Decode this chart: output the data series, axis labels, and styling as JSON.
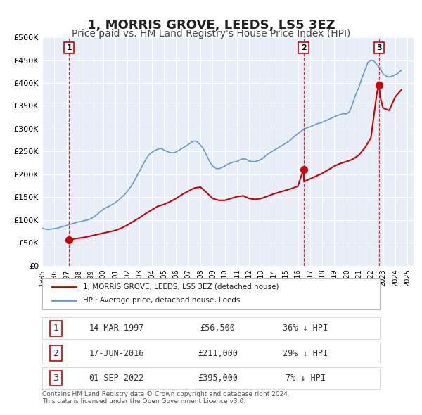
{
  "title": "1, MORRIS GROVE, LEEDS, LS5 3EZ",
  "subtitle": "Price paid vs. HM Land Registry's House Price Index (HPI)",
  "title_fontsize": 13,
  "subtitle_fontsize": 10,
  "background_color": "#ffffff",
  "plot_bg_color": "#e8eef8",
  "grid_color": "#ffffff",
  "red_line_color": "#cc0000",
  "blue_line_color": "#6699cc",
  "sale_marker_color": "#cc0000",
  "vline_color": "#cc0000",
  "ylabel_ticks": [
    "£0",
    "£50K",
    "£100K",
    "£150K",
    "£200K",
    "£250K",
    "£300K",
    "£350K",
    "£400K",
    "£450K",
    "£500K"
  ],
  "ytick_values": [
    0,
    50000,
    100000,
    150000,
    200000,
    250000,
    300000,
    350000,
    400000,
    450000,
    500000
  ],
  "xmin": 1995.0,
  "xmax": 2025.5,
  "ymin": 0,
  "ymax": 500000,
  "sales": [
    {
      "num": 1,
      "date": "14-MAR-1997",
      "price": 56500,
      "year": 1997.2,
      "pct": "36%",
      "dir": "↓"
    },
    {
      "num": 2,
      "date": "17-JUN-2016",
      "price": 211000,
      "year": 2016.46,
      "pct": "29%",
      "dir": "↓"
    },
    {
      "num": 3,
      "date": "01-SEP-2022",
      "price": 395000,
      "year": 2022.67,
      "pct": "7%",
      "dir": "↓"
    }
  ],
  "legend_entries": [
    "1, MORRIS GROVE, LEEDS, LS5 3EZ (detached house)",
    "HPI: Average price, detached house, Leeds"
  ],
  "footer_line1": "Contains HM Land Registry data © Crown copyright and database right 2024.",
  "footer_line2": "This data is licensed under the Open Government Licence v3.0.",
  "hpi_data": {
    "years": [
      1995.0,
      1995.25,
      1995.5,
      1995.75,
      1996.0,
      1996.25,
      1996.5,
      1996.75,
      1997.0,
      1997.25,
      1997.5,
      1997.75,
      1998.0,
      1998.25,
      1998.5,
      1998.75,
      1999.0,
      1999.25,
      1999.5,
      1999.75,
      2000.0,
      2000.25,
      2000.5,
      2000.75,
      2001.0,
      2001.25,
      2001.5,
      2001.75,
      2002.0,
      2002.25,
      2002.5,
      2002.75,
      2003.0,
      2003.25,
      2003.5,
      2003.75,
      2004.0,
      2004.25,
      2004.5,
      2004.75,
      2005.0,
      2005.25,
      2005.5,
      2005.75,
      2006.0,
      2006.25,
      2006.5,
      2006.75,
      2007.0,
      2007.25,
      2007.5,
      2007.75,
      2008.0,
      2008.25,
      2008.5,
      2008.75,
      2009.0,
      2009.25,
      2009.5,
      2009.75,
      2010.0,
      2010.25,
      2010.5,
      2010.75,
      2011.0,
      2011.25,
      2011.5,
      2011.75,
      2012.0,
      2012.25,
      2012.5,
      2012.75,
      2013.0,
      2013.25,
      2013.5,
      2013.75,
      2014.0,
      2014.25,
      2014.5,
      2014.75,
      2015.0,
      2015.25,
      2015.5,
      2015.75,
      2016.0,
      2016.25,
      2016.5,
      2016.75,
      2017.0,
      2017.25,
      2017.5,
      2017.75,
      2018.0,
      2018.25,
      2018.5,
      2018.75,
      2019.0,
      2019.25,
      2019.5,
      2019.75,
      2020.0,
      2020.25,
      2020.5,
      2020.75,
      2021.0,
      2021.25,
      2021.5,
      2021.75,
      2022.0,
      2022.25,
      2022.5,
      2022.75,
      2023.0,
      2023.25,
      2023.5,
      2023.75,
      2024.0,
      2024.25,
      2024.5
    ],
    "values": [
      82000,
      80000,
      79000,
      80000,
      81000,
      82000,
      84000,
      86000,
      88000,
      90000,
      92000,
      94000,
      96000,
      97000,
      99000,
      100000,
      103000,
      107000,
      112000,
      118000,
      123000,
      127000,
      130000,
      134000,
      138000,
      143000,
      149000,
      155000,
      163000,
      172000,
      182000,
      195000,
      207000,
      220000,
      232000,
      242000,
      248000,
      252000,
      255000,
      257000,
      253000,
      250000,
      248000,
      247000,
      249000,
      253000,
      257000,
      261000,
      265000,
      270000,
      273000,
      271000,
      264000,
      255000,
      242000,
      228000,
      218000,
      213000,
      212000,
      215000,
      218000,
      222000,
      225000,
      227000,
      228000,
      232000,
      234000,
      233000,
      229000,
      228000,
      228000,
      230000,
      233000,
      238000,
      244000,
      248000,
      252000,
      256000,
      260000,
      264000,
      268000,
      272000,
      278000,
      284000,
      289000,
      294000,
      299000,
      302000,
      304000,
      307000,
      310000,
      312000,
      314000,
      317000,
      320000,
      323000,
      326000,
      329000,
      331000,
      333000,
      332000,
      338000,
      355000,
      375000,
      390000,
      410000,
      428000,
      445000,
      450000,
      448000,
      440000,
      432000,
      420000,
      415000,
      413000,
      415000,
      418000,
      422000,
      428000
    ]
  },
  "property_data": {
    "years": [
      1997.0,
      1997.2,
      1997.5,
      1998.0,
      1998.5,
      1999.0,
      1999.5,
      2000.0,
      2000.5,
      2001.0,
      2001.5,
      2002.0,
      2002.5,
      2003.0,
      2003.5,
      2004.0,
      2004.5,
      2005.0,
      2005.5,
      2006.0,
      2006.5,
      2007.0,
      2007.5,
      2008.0,
      2008.5,
      2009.0,
      2009.5,
      2010.0,
      2010.5,
      2011.0,
      2011.5,
      2012.0,
      2012.5,
      2013.0,
      2013.5,
      2014.0,
      2014.5,
      2015.0,
      2015.5,
      2016.0,
      2016.46,
      2016.5,
      2017.0,
      2017.5,
      2018.0,
      2018.5,
      2019.0,
      2019.5,
      2020.0,
      2020.5,
      2021.0,
      2021.5,
      2022.0,
      2022.5,
      2022.67,
      2022.75,
      2023.0,
      2023.5,
      2024.0,
      2024.5
    ],
    "values": [
      54000,
      56500,
      58000,
      60000,
      62000,
      65000,
      68000,
      71000,
      74000,
      77000,
      82000,
      89000,
      97000,
      105000,
      114000,
      122000,
      130000,
      134000,
      140000,
      147000,
      156000,
      163000,
      170000,
      172000,
      160000,
      147000,
      143000,
      143000,
      147000,
      151000,
      153000,
      147000,
      145000,
      147000,
      152000,
      157000,
      161000,
      165000,
      169000,
      174000,
      211000,
      184000,
      190000,
      196000,
      202000,
      210000,
      218000,
      224000,
      228000,
      233000,
      242000,
      258000,
      280000,
      380000,
      395000,
      370000,
      345000,
      340000,
      370000,
      385000
    ]
  }
}
